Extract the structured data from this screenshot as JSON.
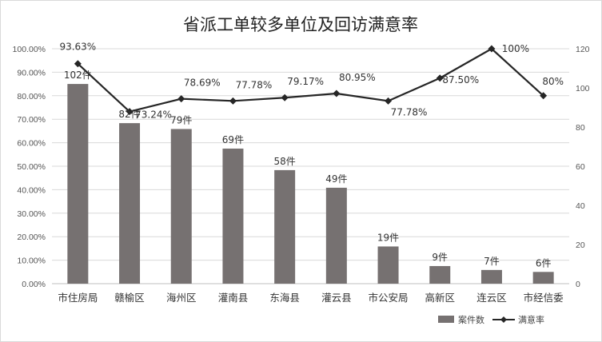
{
  "chart_data": {
    "type": "bar+line",
    "title": "省派工单较多单位及回访满意率",
    "categories": [
      "市住房局",
      "赣榆区",
      "海州区",
      "灌南县",
      "东海县",
      "灌云县",
      "市公安局",
      "高新区",
      "连云区",
      "市经信委"
    ],
    "series": [
      {
        "name": "案件数",
        "type": "bar",
        "axis": "right",
        "color": "#767171",
        "values": [
          102,
          82,
          79,
          69,
          58,
          49,
          19,
          9,
          7,
          6
        ],
        "labels": [
          "102件",
          "82件",
          "79件",
          "69件",
          "58件",
          "49件",
          "19件",
          "9件",
          "7件",
          "6件"
        ]
      },
      {
        "name": "满意率",
        "type": "line",
        "axis": "left",
        "color": "#262626",
        "values": [
          93.63,
          73.24,
          78.69,
          77.78,
          79.17,
          80.95,
          77.78,
          87.5,
          100,
          80
        ],
        "labels": [
          "93.63%",
          "73.24%",
          "78.69%",
          "77.78%",
          "79.17%",
          "80.95%",
          "77.78%",
          "87.50%",
          "100%",
          "80%"
        ]
      }
    ],
    "y_left": {
      "min": 0,
      "max": 100,
      "ticks": [
        "0.00%",
        "10.00%",
        "20.00%",
        "30.00%",
        "40.00%",
        "50.00%",
        "60.00%",
        "70.00%",
        "80.00%",
        "90.00%",
        "100.00%"
      ]
    },
    "y_right": {
      "min": 0,
      "max": 120,
      "ticks": [
        "0",
        "20",
        "40",
        "60",
        "80",
        "100",
        "120"
      ]
    },
    "grid": true,
    "legend_position": "bottom-right"
  }
}
